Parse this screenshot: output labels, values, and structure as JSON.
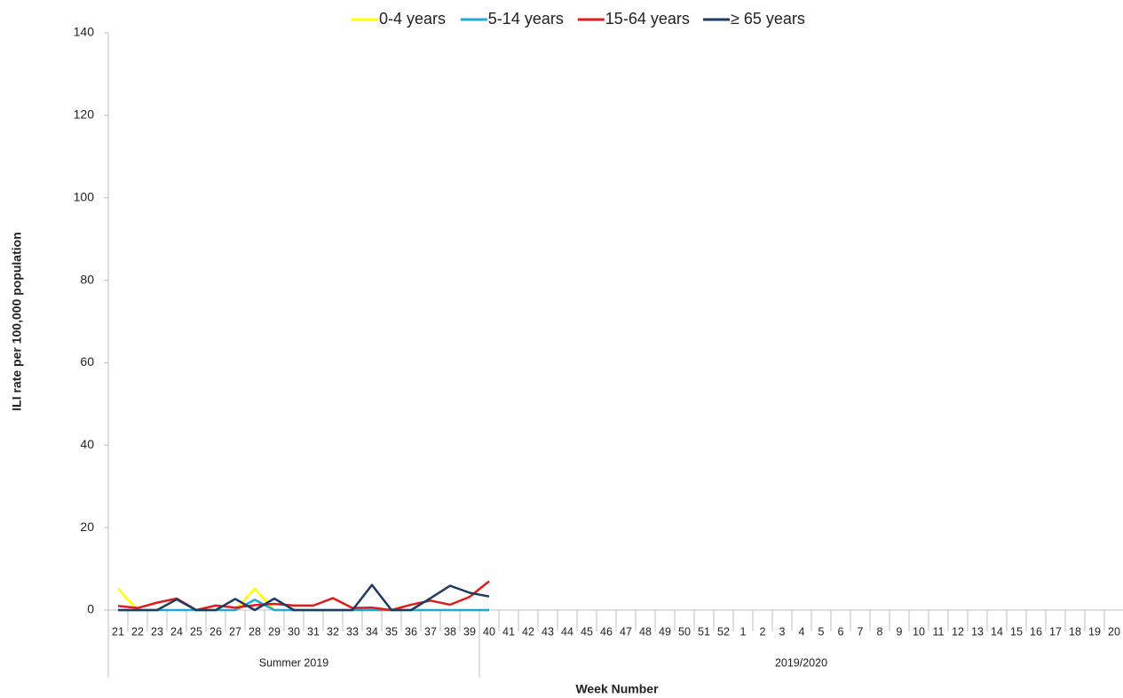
{
  "chart_data": {
    "type": "line",
    "x_label": "Week Number",
    "y_label": "ILI rate per 100,000 population",
    "categories": [
      "21",
      "22",
      "23",
      "24",
      "25",
      "26",
      "27",
      "28",
      "29",
      "30",
      "31",
      "32",
      "33",
      "34",
      "35",
      "36",
      "37",
      "38",
      "39",
      "40",
      "41",
      "42",
      "43",
      "44",
      "45",
      "46",
      "47",
      "48",
      "49",
      "50",
      "51",
      "52",
      "1",
      "2",
      "3",
      "4",
      "5",
      "6",
      "7",
      "8",
      "9",
      "10",
      "11",
      "12",
      "13",
      "14",
      "15",
      "16",
      "17",
      "18",
      "19",
      "20"
    ],
    "groups": [
      {
        "name": "Summer 2019",
        "count": 19
      },
      {
        "name": "2019/2020",
        "count": 33
      }
    ],
    "series": [
      {
        "name": "0-4 years",
        "color": "#ffff00",
        "values": [
          5.2,
          0,
          0,
          2.6,
          0,
          0,
          0,
          5.2,
          0,
          0,
          0,
          0,
          0,
          0,
          0,
          0,
          0,
          0,
          0,
          0,
          null,
          null,
          null,
          null,
          null,
          null,
          null,
          null,
          null,
          null,
          null,
          null,
          null,
          null,
          null,
          null,
          null,
          null,
          null,
          null,
          null,
          null,
          null,
          null,
          null,
          null,
          null,
          null,
          null,
          null,
          null,
          null
        ]
      },
      {
        "name": "5-14 years",
        "color": "#1fa8d8",
        "values": [
          0,
          0,
          0,
          0,
          0,
          0,
          0,
          2.5,
          0,
          0,
          0,
          0,
          0,
          0,
          0,
          0,
          0,
          0,
          0,
          0,
          null,
          null,
          null,
          null,
          null,
          null,
          null,
          null,
          null,
          null,
          null,
          null,
          null,
          null,
          null,
          null,
          null,
          null,
          null,
          null,
          null,
          null,
          null,
          null,
          null,
          null,
          null,
          null,
          null,
          null,
          null,
          null
        ]
      },
      {
        "name": "15-64 years",
        "color": "#e01b1b",
        "values": [
          1,
          0.5,
          1.8,
          2.8,
          0,
          1.1,
          0.6,
          1.2,
          1.5,
          1.1,
          1.1,
          2.9,
          0.5,
          0.6,
          0,
          1.3,
          2.3,
          1.3,
          3.2,
          7,
          null,
          null,
          null,
          null,
          null,
          null,
          null,
          null,
          null,
          null,
          null,
          null,
          null,
          null,
          null,
          null,
          null,
          null,
          null,
          null,
          null,
          null,
          null,
          null,
          null,
          null,
          null,
          null,
          null,
          null,
          null,
          null
        ]
      },
      {
        "name": "≥ 65 years",
        "color": "#1f3b63",
        "values": [
          0,
          0,
          0,
          2.6,
          0,
          0,
          2.7,
          0,
          2.8,
          0,
          0,
          0,
          0,
          6.1,
          0,
          0,
          2.9,
          5.9,
          4.2,
          3.3,
          null,
          null,
          null,
          null,
          null,
          null,
          null,
          null,
          null,
          null,
          null,
          null,
          null,
          null,
          null,
          null,
          null,
          null,
          null,
          null,
          null,
          null,
          null,
          null,
          null,
          null,
          null,
          null,
          null,
          null,
          null,
          null
        ]
      }
    ],
    "ylim": [
      0,
      140
    ],
    "yticks": [
      0,
      20,
      40,
      60,
      80,
      100,
      120,
      140
    ],
    "grid": false,
    "legend": "top"
  }
}
